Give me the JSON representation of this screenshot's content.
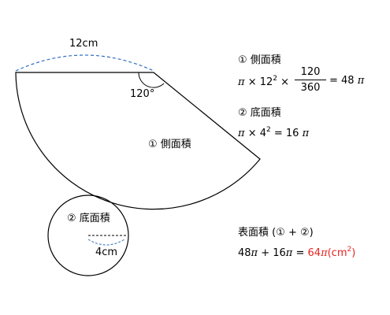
{
  "figure": {
    "arc_length_label": "12cm",
    "angle_label": "120°",
    "lateral_label": "① 側面積",
    "base_label": "② 底面積",
    "radius_label": "4cm"
  },
  "calc": {
    "lateral_title": "① 側面積",
    "lateral_pi": "π",
    "lateral_times1": "× 12",
    "lateral_exp": "2",
    "lateral_times2": "×",
    "lateral_num": "120",
    "lateral_den": "360",
    "lateral_result": "= 48",
    "lateral_result_pi": "π",
    "base_title": "② 底面積",
    "base_pi": "π",
    "base_expr": "× 4",
    "base_exp": "2",
    "base_result": "= 16",
    "base_result_pi": "π",
    "total_title": "表面積 (① + ②)",
    "total_expr": "48",
    "total_pi1": "π",
    "total_plus": " + 16",
    "total_pi2": "π",
    "total_eq": " = ",
    "total_answer": "64",
    "total_answer_pi": "π",
    "total_unit": "(cm",
    "total_unit_exp": "2",
    "total_unit_close": ")"
  },
  "colors": {
    "arc_dash": "#2f6fbf",
    "answer": "#e8231f",
    "stroke": "#000000"
  }
}
